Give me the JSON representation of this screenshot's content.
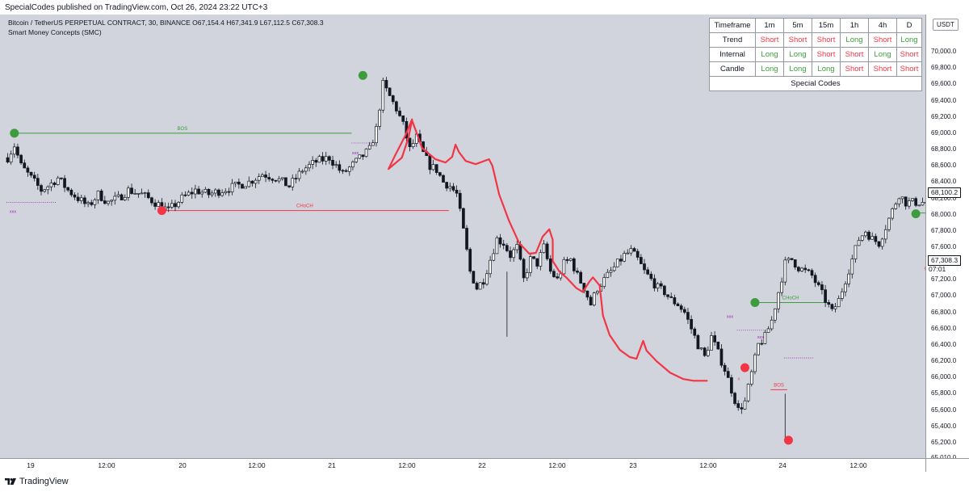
{
  "header": {
    "published": "SpecialCodes published on TradingView.com, Oct 26, 2024 23:22 UTC+3",
    "symbol_line": "Bitcoin / TetherUS PERPETUAL CONTRACT, 30, BINANCE  O67,154.4  H67,341.9  L67,112.5  C67,308.3",
    "indicator": "Smart Money Concepts (SMC)"
  },
  "price_axis": {
    "currency": "USDT",
    "ticks": [
      "70,000.0",
      "69,800.0",
      "69,600.0",
      "69,400.0",
      "69,200.0",
      "69,000.0",
      "68,800.0",
      "68,600.0",
      "68,400.0",
      "68,200.0",
      "68,000.0",
      "67,800.0",
      "67,600.0",
      "67,400.0",
      "67,200.0",
      "67,000.0",
      "66,800.0",
      "66,600.0",
      "66,400.0",
      "66,200.0",
      "66,000.0",
      "65,800.0",
      "65,600.0",
      "65,400.0",
      "65,200.0",
      "65,010.0"
    ],
    "current_price": "67,308.3",
    "countdown": "07:01",
    "marker_price": "68,100.2"
  },
  "time_axis": {
    "ticks": [
      "19",
      "12:00",
      "20",
      "12:00",
      "21",
      "12:00",
      "22",
      "12:00",
      "23",
      "12:00",
      "24",
      "12:00"
    ]
  },
  "table": {
    "header": [
      "Timeframe",
      "1m",
      "5m",
      "15m",
      "1h",
      "4h",
      "D"
    ],
    "rows": [
      {
        "label": "Trend",
        "cells": [
          "Short",
          "Short",
          "Short",
          "Long",
          "Short",
          "Long"
        ]
      },
      {
        "label": "Internal",
        "cells": [
          "Long",
          "Long",
          "Short",
          "Short",
          "Long",
          "Short"
        ]
      },
      {
        "label": "Candle",
        "cells": [
          "Long",
          "Long",
          "Long",
          "Short",
          "Short",
          "Short"
        ]
      }
    ],
    "footer": "Special Codes"
  },
  "chart_data": {
    "type": "candlestick",
    "symbol": "BTCUSDT.P",
    "timeframe": "30",
    "x": [
      "19",
      "12:00",
      "20",
      "12:00",
      "21",
      "12:00",
      "22",
      "12:00",
      "23",
      "12:00",
      "24",
      "12:00"
    ],
    "ylim": [
      65010,
      70150
    ],
    "ohlc_last": {
      "open": 67154.4,
      "high": 67341.9,
      "low": 67112.5,
      "close": 67308.3
    },
    "anchor_closes": [
      [
        0,
        68700
      ],
      [
        2,
        68850
      ],
      [
        4,
        68600
      ],
      [
        6,
        68500
      ],
      [
        8,
        68400
      ],
      [
        10,
        68300
      ],
      [
        12,
        68350
      ],
      [
        15,
        68450
      ],
      [
        18,
        68300
      ],
      [
        21,
        68200
      ],
      [
        24,
        68100
      ],
      [
        27,
        68250
      ],
      [
        30,
        68150
      ],
      [
        33,
        68200
      ],
      [
        36,
        68300
      ],
      [
        40,
        68250
      ],
      [
        44,
        68150
      ],
      [
        48,
        68050
      ],
      [
        52,
        68200
      ],
      [
        56,
        68300
      ],
      [
        60,
        68250
      ],
      [
        64,
        68300
      ],
      [
        68,
        68350
      ],
      [
        72,
        68400
      ],
      [
        76,
        68500
      ],
      [
        80,
        68450
      ],
      [
        84,
        68350
      ],
      [
        88,
        68550
      ],
      [
        92,
        68650
      ],
      [
        96,
        68700
      ],
      [
        100,
        68500
      ],
      [
        104,
        68650
      ],
      [
        108,
        68800
      ],
      [
        110,
        69050
      ],
      [
        112,
        69600
      ],
      [
        114,
        69450
      ],
      [
        116,
        69300
      ],
      [
        118,
        69100
      ],
      [
        120,
        68800
      ],
      [
        122,
        68950
      ],
      [
        124,
        68750
      ],
      [
        126,
        68600
      ],
      [
        128,
        68550
      ],
      [
        130,
        68400
      ],
      [
        132,
        68350
      ],
      [
        134,
        68250
      ],
      [
        136,
        67800
      ],
      [
        138,
        67300
      ],
      [
        140,
        67100
      ],
      [
        142,
        67200
      ],
      [
        144,
        67450
      ],
      [
        146,
        67700
      ],
      [
        148,
        67650
      ],
      [
        150,
        67500
      ],
      [
        152,
        67600
      ],
      [
        154,
        67200
      ],
      [
        156,
        67450
      ],
      [
        158,
        67400
      ],
      [
        160,
        67600
      ],
      [
        162,
        67300
      ],
      [
        164,
        67200
      ],
      [
        166,
        67400
      ],
      [
        168,
        67450
      ],
      [
        170,
        67250
      ],
      [
        172,
        67100
      ],
      [
        174,
        66900
      ],
      [
        176,
        67100
      ],
      [
        178,
        67200
      ],
      [
        180,
        67300
      ],
      [
        182,
        67400
      ],
      [
        184,
        67500
      ],
      [
        186,
        67550
      ],
      [
        188,
        67450
      ],
      [
        190,
        67300
      ],
      [
        192,
        67200
      ],
      [
        194,
        67100
      ],
      [
        196,
        67050
      ],
      [
        198,
        66950
      ],
      [
        200,
        66900
      ],
      [
        202,
        66800
      ],
      [
        204,
        66600
      ],
      [
        206,
        66400
      ],
      [
        208,
        66250
      ],
      [
        210,
        66500
      ],
      [
        212,
        66300
      ],
      [
        214,
        66100
      ],
      [
        216,
        65850
      ],
      [
        218,
        65600
      ],
      [
        220,
        65700
      ],
      [
        222,
        66050
      ],
      [
        224,
        66400
      ],
      [
        226,
        66500
      ],
      [
        228,
        66700
      ],
      [
        230,
        67050
      ],
      [
        232,
        67400
      ],
      [
        234,
        67450
      ],
      [
        236,
        67350
      ],
      [
        238,
        67300
      ],
      [
        240,
        67250
      ],
      [
        242,
        67100
      ],
      [
        244,
        66950
      ],
      [
        246,
        66800
      ],
      [
        248,
        66950
      ],
      [
        250,
        67200
      ],
      [
        252,
        67450
      ],
      [
        254,
        67700
      ],
      [
        256,
        67800
      ],
      [
        258,
        67700
      ],
      [
        260,
        67650
      ],
      [
        262,
        67850
      ],
      [
        264,
        68050
      ],
      [
        266,
        68250
      ],
      [
        268,
        68150
      ]
    ],
    "markers": [
      {
        "type": "swing-high",
        "bar": 2,
        "price": 69000
      },
      {
        "type": "swing-low",
        "bar": 46,
        "price": 68050
      },
      {
        "type": "swing-high",
        "bar": 106,
        "price": 69710
      },
      {
        "type": "swing-high",
        "bar": 223,
        "price": 66920
      },
      {
        "type": "swing-low",
        "bar": 220,
        "price": 66120
      },
      {
        "type": "swing-low",
        "bar": 233,
        "price": 65230
      },
      {
        "type": "swing-high",
        "bar": 271,
        "price": 68010
      },
      {
        "type": "swing-low",
        "bar": 275,
        "price": 67340
      }
    ],
    "structure_lines": [
      {
        "label": "BOS",
        "color": "#3d9c3d",
        "y": 69000,
        "x_start_bar": 2,
        "x_end_bar": 103
      },
      {
        "label": "CHoCH",
        "color": "#f23645",
        "y": 68050,
        "x_start_bar": 46,
        "x_end_bar": 132
      },
      {
        "label": "CHoCH",
        "color": "#3d9c3d",
        "y": 66920,
        "x_start_bar": 223,
        "x_end_bar": 245
      },
      {
        "label": "BOS",
        "color": "#3d9c3d",
        "y": 68020,
        "x_start_bar": 271,
        "x_end_bar": 284
      },
      {
        "label": "BOS",
        "color": "#f23645",
        "y": 65850,
        "x_start_bar": 228,
        "x_end_bar": 233
      }
    ],
    "annotations": [
      "xxx",
      "xxx",
      "xxx",
      "xxx",
      "x"
    ],
    "drawn_path": [
      [
        121,
        69170
      ],
      [
        119,
        68970
      ],
      [
        116,
        68730
      ],
      [
        114,
        68560
      ],
      [
        118,
        68700
      ],
      [
        120,
        68950
      ],
      [
        121,
        69160
      ],
      [
        124,
        68820
      ],
      [
        128,
        68680
      ],
      [
        131,
        68640
      ],
      [
        133,
        68710
      ],
      [
        134,
        68860
      ],
      [
        135,
        68770
      ],
      [
        137,
        68660
      ],
      [
        140,
        68620
      ],
      [
        144,
        68680
      ],
      [
        145,
        68600
      ],
      [
        147,
        68250
      ],
      [
        150,
        67920
      ],
      [
        153,
        67650
      ],
      [
        156,
        67520
      ],
      [
        158,
        67530
      ],
      [
        160,
        67730
      ],
      [
        162,
        67820
      ],
      [
        163,
        67690
      ],
      [
        163,
        67430
      ],
      [
        165,
        67300
      ],
      [
        167,
        67230
      ],
      [
        170,
        67100
      ],
      [
        172,
        67050
      ],
      [
        174,
        67180
      ],
      [
        175,
        67230
      ],
      [
        177,
        67130
      ],
      [
        178,
        66760
      ],
      [
        180,
        66520
      ],
      [
        183,
        66340
      ],
      [
        186,
        66250
      ],
      [
        188,
        66230
      ],
      [
        190,
        66450
      ],
      [
        191,
        66330
      ],
      [
        194,
        66200
      ],
      [
        198,
        66060
      ],
      [
        202,
        65980
      ],
      [
        205,
        65960
      ],
      [
        209,
        65960
      ]
    ]
  }
}
